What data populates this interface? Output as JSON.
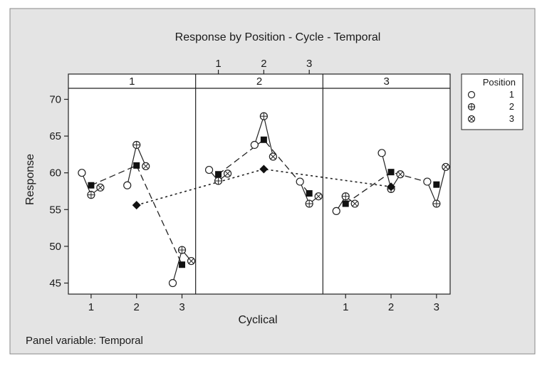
{
  "chart_data": {
    "type": "scatter",
    "title": "Response by Position - Cycle - Temporal",
    "xlabel": "Cyclical",
    "ylabel": "Response",
    "footer": "Panel variable: Temporal",
    "ylim": [
      43.5,
      71.5
    ],
    "xlim": [
      0.5,
      3.3
    ],
    "y_ticks": [
      "45",
      "50",
      "55",
      "60",
      "65",
      "70"
    ],
    "x_ticks": [
      "1",
      "2",
      "3"
    ],
    "panels": [
      "1",
      "2",
      "3"
    ],
    "legend": {
      "title": "Position",
      "entries": [
        {
          "label": "1",
          "marker": "circle"
        },
        {
          "label": "2",
          "marker": "circle-plus"
        },
        {
          "label": "3",
          "marker": "circle-cross"
        }
      ]
    },
    "series": [
      {
        "panel": "1",
        "points": [
          {
            "cycle": 1,
            "position": "1",
            "value": 60.0
          },
          {
            "cycle": 1,
            "position": "2",
            "value": 57.0
          },
          {
            "cycle": 1,
            "position": "3",
            "value": 58.0
          },
          {
            "cycle": 2,
            "position": "1",
            "value": 58.3
          },
          {
            "cycle": 2,
            "position": "2",
            "value": 63.8
          },
          {
            "cycle": 2,
            "position": "3",
            "value": 60.9
          },
          {
            "cycle": 3,
            "position": "1",
            "value": 45.0
          },
          {
            "cycle": 3,
            "position": "2",
            "value": 49.5
          },
          {
            "cycle": 3,
            "position": "3",
            "value": 48.0
          }
        ],
        "cycle_means": [
          58.3,
          61.0,
          47.5
        ],
        "panel_mean": 55.6
      },
      {
        "panel": "2",
        "points": [
          {
            "cycle": 1,
            "position": "1",
            "value": 60.4
          },
          {
            "cycle": 1,
            "position": "2",
            "value": 58.9
          },
          {
            "cycle": 1,
            "position": "3",
            "value": 59.9
          },
          {
            "cycle": 2,
            "position": "1",
            "value": 63.8
          },
          {
            "cycle": 2,
            "position": "2",
            "value": 67.7
          },
          {
            "cycle": 2,
            "position": "3",
            "value": 62.2
          },
          {
            "cycle": 3,
            "position": "1",
            "value": 58.8
          },
          {
            "cycle": 3,
            "position": "2",
            "value": 55.8
          },
          {
            "cycle": 3,
            "position": "3",
            "value": 56.8
          }
        ],
        "cycle_means": [
          59.8,
          64.5,
          57.2
        ],
        "panel_mean": 60.5
      },
      {
        "panel": "3",
        "points": [
          {
            "cycle": 1,
            "position": "1",
            "value": 54.8
          },
          {
            "cycle": 1,
            "position": "2",
            "value": 56.8
          },
          {
            "cycle": 1,
            "position": "3",
            "value": 55.8
          },
          {
            "cycle": 2,
            "position": "1",
            "value": 62.7
          },
          {
            "cycle": 2,
            "position": "2",
            "value": 57.8
          },
          {
            "cycle": 2,
            "position": "3",
            "value": 59.8
          },
          {
            "cycle": 3,
            "position": "1",
            "value": 58.8
          },
          {
            "cycle": 3,
            "position": "2",
            "value": 55.8
          },
          {
            "cycle": 3,
            "position": "3",
            "value": 60.8
          }
        ],
        "cycle_means": [
          55.8,
          60.1,
          58.4
        ],
        "panel_mean": 58.1
      }
    ]
  }
}
